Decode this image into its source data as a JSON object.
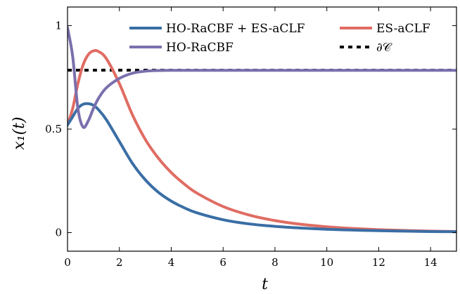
{
  "chart_data": {
    "type": "line",
    "title": "",
    "xlabel": "t",
    "ylabel": "x₁(t)",
    "xlim": [
      0,
      15
    ],
    "ylim": [
      -0.09,
      1.09
    ],
    "x_ticks": [
      0,
      2,
      4,
      6,
      8,
      10,
      12,
      14
    ],
    "x_tick_labels": [
      "0",
      "2",
      "4",
      "6",
      "8",
      "10",
      "12",
      "14"
    ],
    "y_ticks": [
      0,
      0.5,
      1
    ],
    "y_tick_labels": [
      "0",
      "0.5",
      "1"
    ],
    "grid": false,
    "legend_placement": "top",
    "x": [
      0,
      0.2,
      0.4,
      0.6,
      0.8,
      1.0,
      1.2,
      1.5,
      2.0,
      2.5,
      3.0,
      3.5,
      4.0,
      4.5,
      5.0,
      6.0,
      7.0,
      8.0,
      9.0,
      10.0,
      11.0,
      12.0,
      13.0,
      14.0,
      15.0
    ],
    "series": [
      {
        "name": "HO-RaCBF + ES-aCLF",
        "color": "#3a6ea5",
        "style": "solid",
        "values": [
          0.52,
          0.56,
          0.6,
          0.62,
          0.623,
          0.615,
          0.593,
          0.545,
          0.44,
          0.335,
          0.255,
          0.195,
          0.152,
          0.12,
          0.095,
          0.062,
          0.042,
          0.03,
          0.022,
          0.016,
          0.012,
          0.009,
          0.007,
          0.005,
          0.004
        ]
      },
      {
        "name": "ES-aCLF",
        "color": "#e06c63",
        "style": "solid",
        "values": [
          0.52,
          0.6,
          0.72,
          0.81,
          0.86,
          0.878,
          0.875,
          0.84,
          0.72,
          0.57,
          0.45,
          0.36,
          0.29,
          0.235,
          0.19,
          0.126,
          0.085,
          0.058,
          0.04,
          0.028,
          0.02,
          0.014,
          0.01,
          0.007,
          0.005
        ]
      },
      {
        "name": "HO-RaCBF",
        "color": "#7b6fad",
        "style": "solid",
        "values": [
          0.99,
          0.85,
          0.6,
          0.51,
          0.54,
          0.6,
          0.65,
          0.7,
          0.745,
          0.77,
          0.78,
          0.783,
          0.784,
          0.784,
          0.784,
          0.784,
          0.784,
          0.784,
          0.784,
          0.784,
          0.784,
          0.784,
          0.784,
          0.784,
          0.784
        ]
      },
      {
        "name": "∂𝒞",
        "color": "#000000",
        "style": "dashed",
        "values": [
          0.785,
          0.785,
          0.785,
          0.785,
          0.785,
          0.785,
          0.785,
          0.785,
          0.785,
          0.785,
          0.785,
          0.785,
          0.785,
          0.785,
          0.785,
          0.785,
          0.785,
          0.785,
          0.785,
          0.785,
          0.785,
          0.785,
          0.785,
          0.785,
          0.785
        ]
      }
    ]
  }
}
